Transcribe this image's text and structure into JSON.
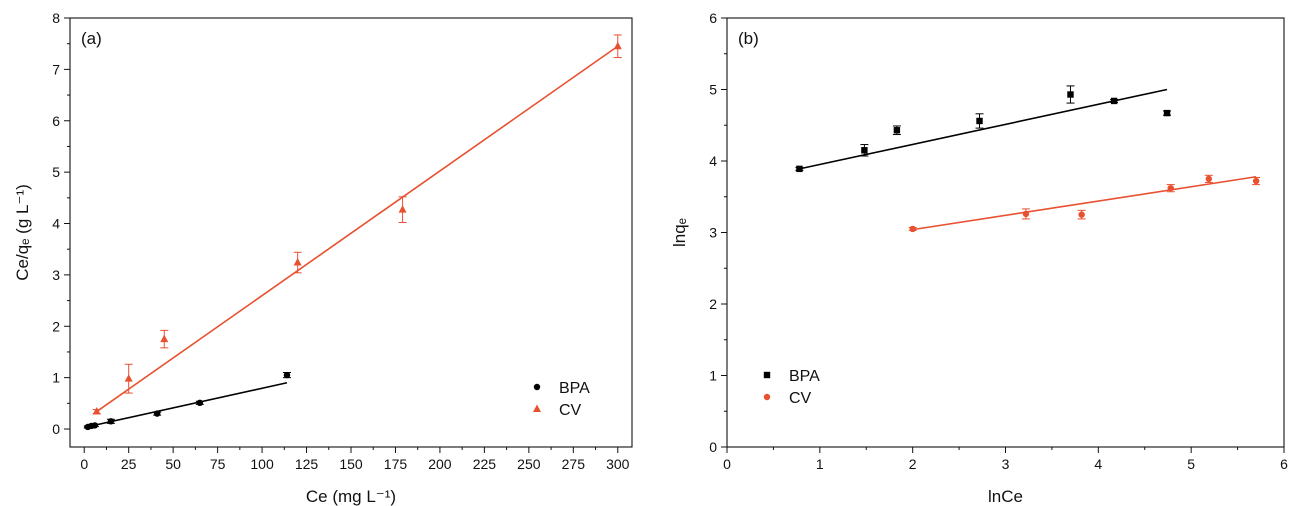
{
  "chart_data": [
    {
      "type": "scatter",
      "panel_label": "(a)",
      "xlabel": "Ce (mg L⁻¹)",
      "ylabel": "Ce/qₑ (g L⁻¹)",
      "xlim": [
        -8,
        308
      ],
      "ylim": [
        -0.35,
        8
      ],
      "x_ticks": [
        0,
        25,
        50,
        75,
        100,
        125,
        150,
        175,
        200,
        225,
        250,
        275,
        300
      ],
      "y_ticks": [
        0,
        1,
        2,
        3,
        4,
        5,
        6,
        7,
        8
      ],
      "grid": false,
      "legend_position": "bottom-right",
      "series": [
        {
          "name": "BPA",
          "marker": "circle",
          "color": "#000000",
          "points": [
            {
              "x": 2,
              "y": 0.04,
              "err": 0.02
            },
            {
              "x": 4,
              "y": 0.06,
              "err": 0.02
            },
            {
              "x": 6,
              "y": 0.07,
              "err": 0.02
            },
            {
              "x": 15,
              "y": 0.15,
              "err": 0.04
            },
            {
              "x": 41,
              "y": 0.3,
              "err": 0.03
            },
            {
              "x": 65,
              "y": 0.51,
              "err": 0.03
            },
            {
              "x": 114,
              "y": 1.05,
              "err": 0.05
            }
          ],
          "fit": {
            "x": [
              0,
              114
            ],
            "y": [
              0.03,
              0.9
            ]
          }
        },
        {
          "name": "CV",
          "marker": "triangle",
          "color": "#e8502f",
          "points": [
            {
              "x": 7,
              "y": 0.34,
              "err": 0.04
            },
            {
              "x": 25,
              "y": 0.98,
              "err": 0.28
            },
            {
              "x": 45,
              "y": 1.75,
              "err": 0.17
            },
            {
              "x": 120,
              "y": 3.24,
              "err": 0.2
            },
            {
              "x": 179,
              "y": 4.27,
              "err": 0.25
            },
            {
              "x": 300,
              "y": 7.45,
              "err": 0.22
            }
          ],
          "fit": {
            "x": [
              7,
              300
            ],
            "y": [
              0.34,
              7.45
            ]
          }
        }
      ]
    },
    {
      "type": "scatter",
      "panel_label": "(b)",
      "xlabel": "lnCe",
      "ylabel": "lnqₑ",
      "xlim": [
        0,
        6
      ],
      "ylim": [
        0,
        6
      ],
      "x_ticks": [
        0,
        1,
        2,
        3,
        4,
        5,
        6
      ],
      "y_ticks": [
        0,
        1,
        2,
        3,
        4,
        5,
        6
      ],
      "grid": false,
      "legend_position": "bottom-left",
      "series": [
        {
          "name": "BPA",
          "marker": "square",
          "color": "#000000",
          "points": [
            {
              "x": 0.78,
              "y": 3.89,
              "err": 0.02
            },
            {
              "x": 1.48,
              "y": 4.15,
              "err": 0.08
            },
            {
              "x": 1.83,
              "y": 4.43,
              "err": 0.06
            },
            {
              "x": 2.72,
              "y": 4.56,
              "err": 0.1
            },
            {
              "x": 3.7,
              "y": 4.93,
              "err": 0.12
            },
            {
              "x": 4.17,
              "y": 4.84,
              "err": 0.02
            },
            {
              "x": 4.74,
              "y": 4.67,
              "err": 0.03
            }
          ],
          "fit": {
            "x": [
              0.78,
              4.74
            ],
            "y": [
              3.89,
              5.0
            ]
          }
        },
        {
          "name": "CV",
          "marker": "circle",
          "color": "#e8502f",
          "points": [
            {
              "x": 2.0,
              "y": 3.05,
              "err": 0.02
            },
            {
              "x": 3.22,
              "y": 3.26,
              "err": 0.07
            },
            {
              "x": 3.82,
              "y": 3.25,
              "err": 0.06
            },
            {
              "x": 4.78,
              "y": 3.62,
              "err": 0.05
            },
            {
              "x": 5.19,
              "y": 3.75,
              "err": 0.05
            },
            {
              "x": 5.7,
              "y": 3.72,
              "err": 0.05
            }
          ],
          "fit": {
            "x": [
              2.0,
              5.7
            ],
            "y": [
              3.04,
              3.78
            ]
          }
        }
      ]
    }
  ]
}
